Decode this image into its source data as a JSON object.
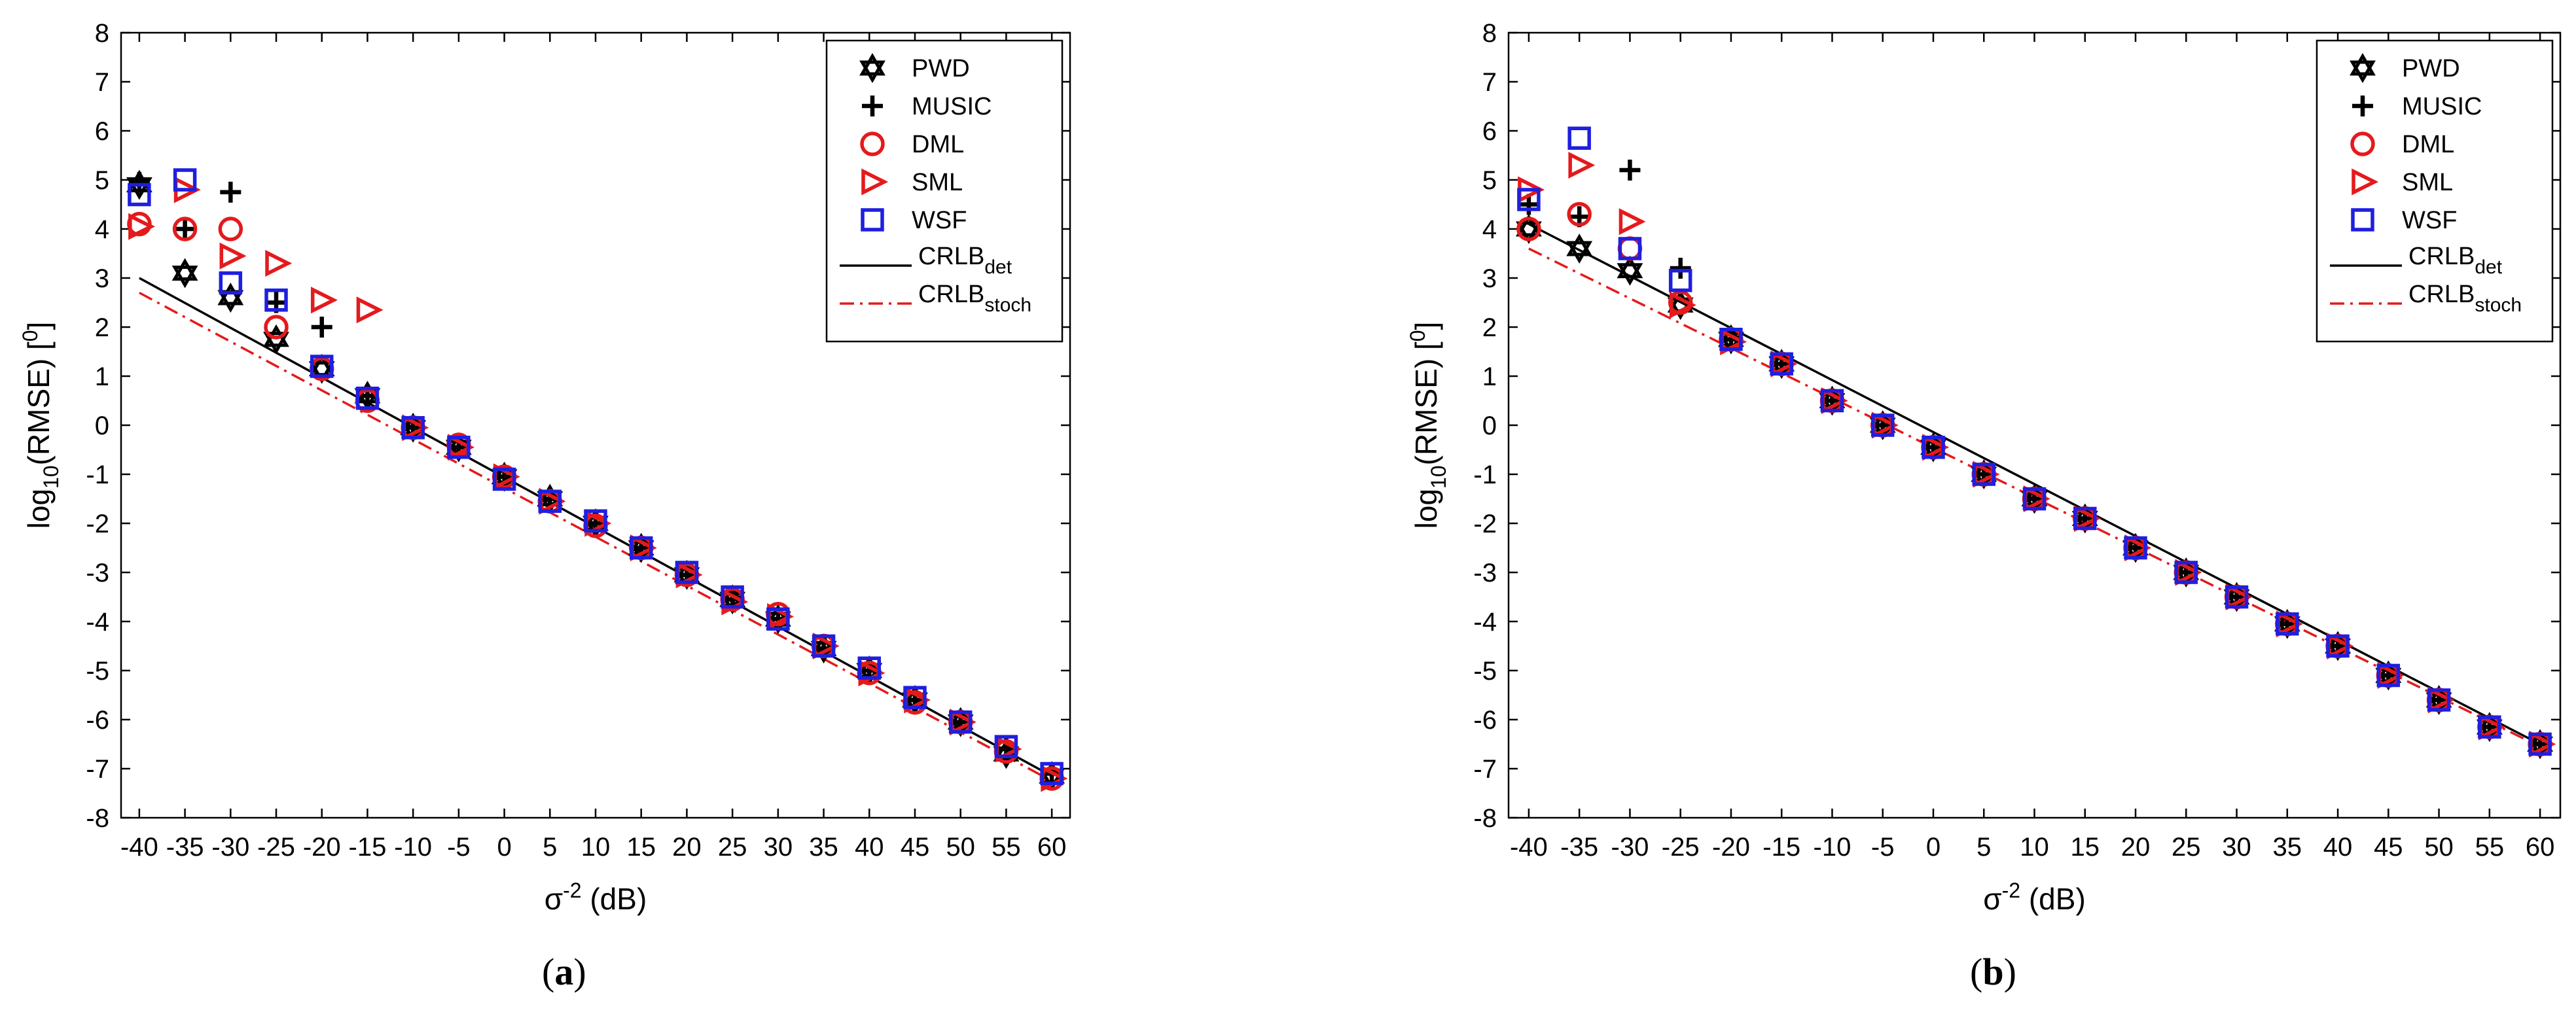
{
  "chart_data": [
    {
      "type": "scatter",
      "panel_label_open": "(",
      "panel_label_letter": "a",
      "panel_label_close": ")",
      "xlabel_sym": "σ",
      "xlabel_sup": "-2",
      "xlabel_rest": " (dB)",
      "ylabel_a": "log",
      "ylabel_sub": "10",
      "ylabel_b": "(RMSE) [",
      "ylabel_sup": "0",
      "ylabel_c": "]",
      "xlim": [
        -42,
        62
      ],
      "ylim": [
        -8,
        8
      ],
      "xticks": [
        -40,
        -35,
        -30,
        -25,
        -20,
        -15,
        -10,
        -5,
        0,
        5,
        10,
        15,
        20,
        25,
        30,
        35,
        40,
        45,
        50,
        55,
        60
      ],
      "yticks": [
        -8,
        -7,
        -6,
        -5,
        -4,
        -3,
        -2,
        -1,
        0,
        1,
        2,
        3,
        4,
        5,
        6,
        7,
        8
      ],
      "legend_position": "top-right",
      "x": [
        -40,
        -35,
        -30,
        -25,
        -20,
        -15,
        -10,
        -5,
        0,
        5,
        10,
        15,
        20,
        25,
        30,
        35,
        40,
        45,
        50,
        55,
        60
      ],
      "series": [
        {
          "name": "PWD",
          "marker": "star6",
          "color": "#000000",
          "values": [
            4.9,
            3.1,
            2.6,
            1.75,
            1.15,
            0.6,
            -0.05,
            -0.45,
            -1.05,
            -1.5,
            -2.0,
            -2.5,
            -3.05,
            -3.55,
            -3.95,
            -4.55,
            -5.0,
            -5.6,
            -6.05,
            -6.7,
            -7.15
          ]
        },
        {
          "name": "MUSIC",
          "marker": "plus",
          "color": "#000000",
          "values": [
            4.95,
            4.0,
            4.75,
            2.5,
            2.0,
            0.6,
            -0.05,
            -0.45,
            -1.05,
            -1.5,
            -2.0,
            -2.5,
            -3.05,
            -3.55,
            -3.95,
            -4.55,
            -5.0,
            -5.6,
            -6.05,
            -6.6,
            -7.1
          ]
        },
        {
          "name": "DML",
          "marker": "circle",
          "color": "#e41a1c",
          "values": [
            4.1,
            4.0,
            4.0,
            2.0,
            1.15,
            0.5,
            -0.05,
            -0.4,
            -1.05,
            -1.55,
            -2.05,
            -2.5,
            -3.05,
            -3.55,
            -3.85,
            -4.5,
            -5.05,
            -5.65,
            -6.05,
            -6.65,
            -7.2
          ]
        },
        {
          "name": "SML",
          "marker": "triangle",
          "color": "#e41a1c",
          "values": [
            4.05,
            4.8,
            3.45,
            3.3,
            2.55,
            2.35,
            -0.05,
            -0.45,
            -1.05,
            -1.55,
            -2.0,
            -2.5,
            -3.05,
            -3.6,
            -3.9,
            -4.5,
            -5.05,
            -5.6,
            -6.05,
            -6.6,
            -7.2
          ]
        },
        {
          "name": "WSF",
          "marker": "square",
          "color": "#1f1fe0",
          "values": [
            4.7,
            5.0,
            2.9,
            2.55,
            1.2,
            0.55,
            -0.05,
            -0.45,
            -1.1,
            -1.55,
            -1.95,
            -2.5,
            -3.0,
            -3.5,
            -3.95,
            -4.5,
            -4.95,
            -5.55,
            -6.05,
            -6.55,
            -7.1
          ]
        }
      ],
      "lines": [
        {
          "name_main": "CRLB",
          "name_sub": "det",
          "style": "solid",
          "color": "#000000",
          "x": [
            -40,
            60
          ],
          "y": [
            3.0,
            -7.15
          ]
        },
        {
          "name_main": "CRLB",
          "name_sub": "stoch",
          "style": "dashdot",
          "color": "#e41a1c",
          "x": [
            -40,
            60
          ],
          "y": [
            2.7,
            -7.25
          ]
        }
      ]
    },
    {
      "type": "scatter",
      "panel_label_open": "(",
      "panel_label_letter": "b",
      "panel_label_close": ")",
      "xlabel_sym": "σ",
      "xlabel_sup": "-2",
      "xlabel_rest": " (dB)",
      "ylabel_a": "log",
      "ylabel_sub": "10",
      "ylabel_b": "(RMSE) [",
      "ylabel_sup": "0",
      "ylabel_c": "]",
      "xlim": [
        -42,
        62
      ],
      "ylim": [
        -8,
        8
      ],
      "xticks": [
        -40,
        -35,
        -30,
        -25,
        -20,
        -15,
        -10,
        -5,
        0,
        5,
        10,
        15,
        20,
        25,
        30,
        35,
        40,
        45,
        50,
        55,
        60
      ],
      "yticks": [
        -8,
        -7,
        -6,
        -5,
        -4,
        -3,
        -2,
        -1,
        0,
        1,
        2,
        3,
        4,
        5,
        6,
        7,
        8
      ],
      "legend_position": "top-right",
      "x": [
        -40,
        -35,
        -30,
        -25,
        -20,
        -15,
        -10,
        -5,
        0,
        5,
        10,
        15,
        20,
        25,
        30,
        35,
        40,
        45,
        50,
        55,
        60
      ],
      "series": [
        {
          "name": "PWD",
          "marker": "star6",
          "color": "#000000",
          "values": [
            4.0,
            3.6,
            3.15,
            2.45,
            1.75,
            1.25,
            0.5,
            0.0,
            -0.45,
            -1.0,
            -1.5,
            -1.9,
            -2.5,
            -3.0,
            -3.5,
            -4.05,
            -4.5,
            -5.1,
            -5.6,
            -6.15,
            -6.5
          ]
        },
        {
          "name": "MUSIC",
          "marker": "plus",
          "color": "#000000",
          "values": [
            4.5,
            4.25,
            5.2,
            3.2,
            1.75,
            1.25,
            0.5,
            0.0,
            -0.45,
            -1.0,
            -1.5,
            -1.9,
            -2.5,
            -3.0,
            -3.5,
            -4.05,
            -4.5,
            -5.1,
            -5.6,
            -6.15,
            -6.5
          ]
        },
        {
          "name": "DML",
          "marker": "circle",
          "color": "#e41a1c",
          "values": [
            4.0,
            4.3,
            3.6,
            2.5,
            1.75,
            1.25,
            0.5,
            0.0,
            -0.45,
            -1.0,
            -1.5,
            -1.9,
            -2.5,
            -3.0,
            -3.5,
            -4.05,
            -4.5,
            -5.1,
            -5.6,
            -6.15,
            -6.5
          ]
        },
        {
          "name": "SML",
          "marker": "triangle",
          "color": "#e41a1c",
          "values": [
            4.8,
            5.3,
            4.15,
            2.45,
            1.7,
            1.25,
            0.5,
            0.0,
            -0.45,
            -1.0,
            -1.5,
            -1.9,
            -2.5,
            -3.0,
            -3.5,
            -4.05,
            -4.5,
            -5.1,
            -5.6,
            -6.15,
            -6.5
          ]
        },
        {
          "name": "WSF",
          "marker": "square",
          "color": "#1f1fe0",
          "values": [
            4.6,
            5.85,
            3.6,
            2.95,
            1.75,
            1.25,
            0.5,
            0.0,
            -0.45,
            -1.0,
            -1.5,
            -1.9,
            -2.5,
            -3.0,
            -3.5,
            -4.05,
            -4.5,
            -5.1,
            -5.6,
            -6.15,
            -6.5
          ]
        }
      ],
      "lines": [
        {
          "name_main": "CRLB",
          "name_sub": "det",
          "style": "solid",
          "color": "#000000",
          "x": [
            -40,
            60
          ],
          "y": [
            4.1,
            -6.5
          ]
        },
        {
          "name_main": "CRLB",
          "name_sub": "stoch",
          "style": "dashdot",
          "color": "#e41a1c",
          "x": [
            -40,
            60
          ],
          "y": [
            3.6,
            -6.55
          ]
        }
      ]
    }
  ]
}
